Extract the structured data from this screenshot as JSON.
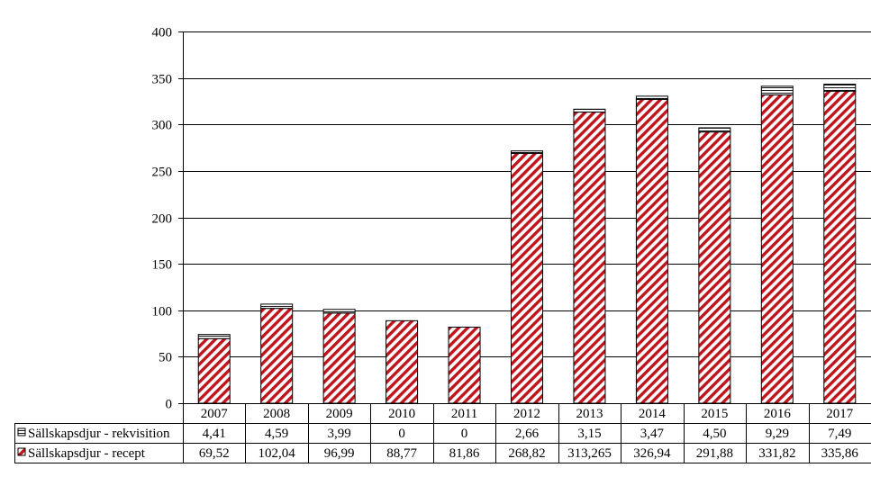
{
  "chart_data": {
    "type": "bar",
    "stacked": true,
    "categories": [
      "2007",
      "2008",
      "2009",
      "2010",
      "2011",
      "2012",
      "2013",
      "2014",
      "2015",
      "2016",
      "2017"
    ],
    "series": [
      {
        "name": "Sällskapsdjur - recept",
        "values": [
          69.52,
          102.04,
          96.99,
          88.77,
          81.86,
          268.82,
          313.265,
          326.94,
          291.88,
          331.82,
          335.86
        ],
        "labels": [
          "69,52",
          "102,04",
          "96,99",
          "88,77",
          "81,86",
          "268,82",
          "313,265",
          "326,94",
          "291,88",
          "331,82",
          "335,86"
        ],
        "color": "#c0141c",
        "pattern": "diagonal-hatch"
      },
      {
        "name": "Sällskapsdjur - rekvisition",
        "values": [
          4.41,
          4.59,
          3.99,
          0,
          0,
          2.66,
          3.15,
          3.47,
          4.5,
          9.29,
          7.49
        ],
        "labels": [
          "4,41",
          "4,59",
          "3,99",
          "0",
          "0",
          "2,66",
          "3,15",
          "3,47",
          "4,50",
          "9,29",
          "7,49"
        ],
        "color": "#ffffff",
        "pattern": "horizontal-lines"
      }
    ],
    "ylim": [
      0,
      400
    ],
    "yticks": [
      0,
      50,
      100,
      150,
      200,
      250,
      300,
      350,
      400
    ],
    "grid": true,
    "legend": "data-table-below"
  }
}
